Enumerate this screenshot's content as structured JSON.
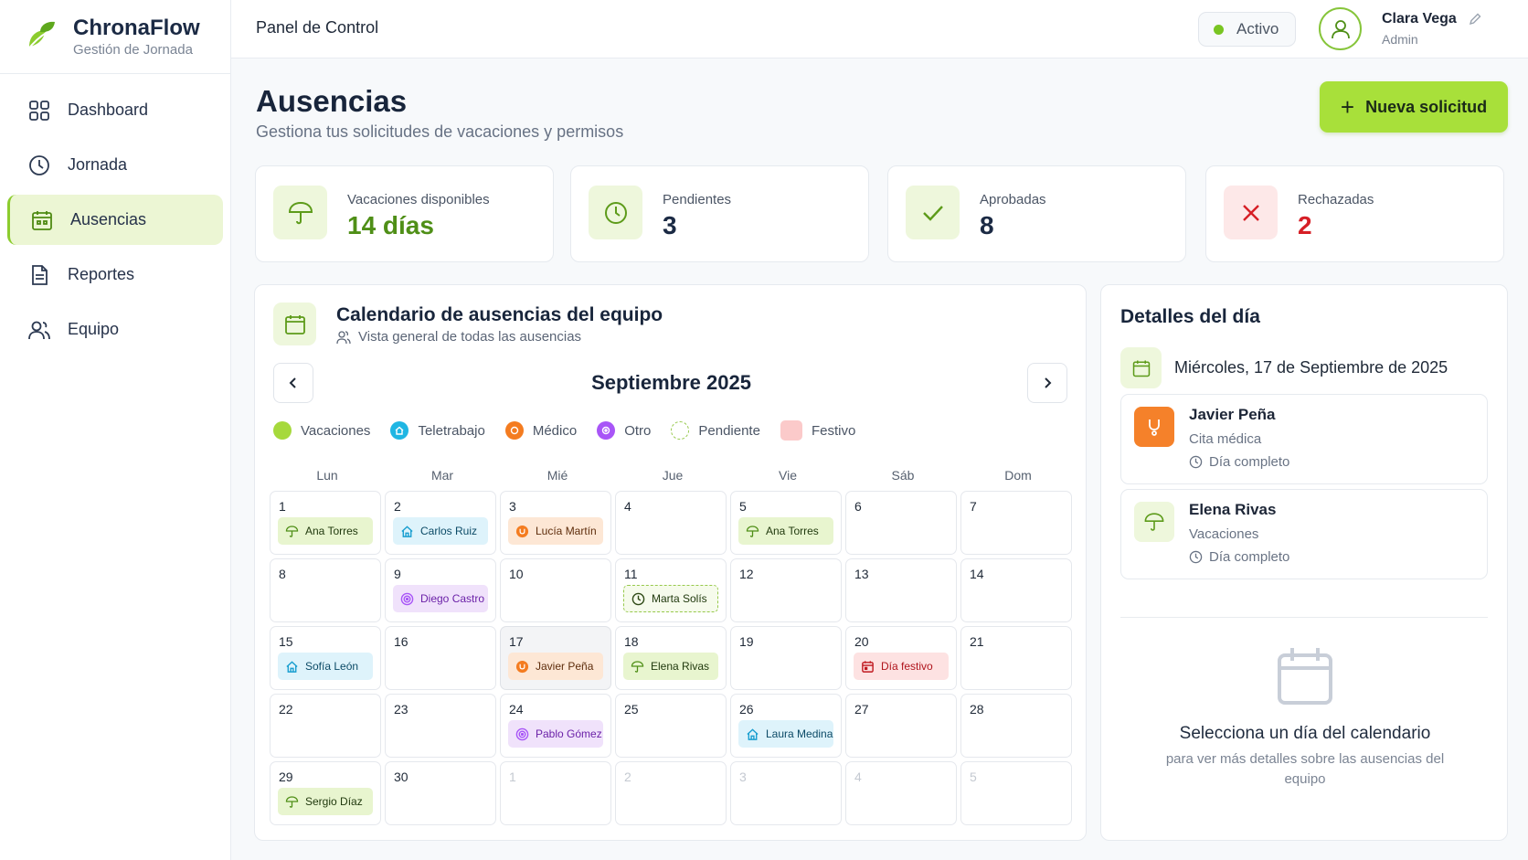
{
  "brand": {
    "title": "ChronaFlow",
    "subtitle": "Gestión de Jornada"
  },
  "sidebar": {
    "items": [
      {
        "label": "Dashboard",
        "icon": "grid-icon"
      },
      {
        "label": "Jornada",
        "icon": "clock-icon"
      },
      {
        "label": "Ausencias",
        "icon": "calendar-icon",
        "active": true
      },
      {
        "label": "Reportes",
        "icon": "document-icon"
      },
      {
        "label": "Equipo",
        "icon": "users-icon"
      }
    ]
  },
  "header": {
    "title": "Panel de Control",
    "status": "Activo",
    "user_name": "Clara Vega",
    "user_role": "Admin"
  },
  "page": {
    "title": "Ausencias",
    "subtitle": "Gestiona tus solicitudes de vacaciones y permisos",
    "new_button": "Nueva solicitud"
  },
  "stats": [
    {
      "label": "Vacaciones disponibles",
      "value": "14 días",
      "color": "#4f8f17"
    },
    {
      "label": "Pendientes",
      "value": "3",
      "color": "#1b2a44"
    },
    {
      "label": "Aprobadas",
      "value": "8",
      "color": "#1b2a44"
    },
    {
      "label": "Rechazadas",
      "value": "2",
      "color": "#d61f26"
    }
  ],
  "calendar": {
    "title": "Calendario de ausencias del equipo",
    "subtitle": "Vista general de todas las ausencias",
    "month": "Septiembre 2025",
    "legend": [
      "Vacaciones",
      "Teletrabajo",
      "Médico",
      "Otro",
      "Pendiente",
      "Festivo"
    ],
    "weekdays": [
      "Lun",
      "Mar",
      "Mié",
      "Jue",
      "Vie",
      "Sáb",
      "Dom"
    ],
    "days": [
      {
        "day": "1",
        "event": "Ana Torres",
        "type": "vac"
      },
      {
        "day": "2",
        "event": "Carlos Ruiz",
        "type": "tele"
      },
      {
        "day": "3",
        "event": "Lucía Martín",
        "type": "med"
      },
      {
        "day": "4"
      },
      {
        "day": "5",
        "event": "Ana Torres",
        "type": "vac"
      },
      {
        "day": "6"
      },
      {
        "day": "7"
      },
      {
        "day": "8"
      },
      {
        "day": "9",
        "event": "Diego Castro",
        "type": "otro"
      },
      {
        "day": "10"
      },
      {
        "day": "11",
        "event": "Marta Solís",
        "type": "pend"
      },
      {
        "day": "12"
      },
      {
        "day": "13"
      },
      {
        "day": "14"
      },
      {
        "day": "15",
        "event": "Sofía León",
        "type": "tele"
      },
      {
        "day": "16"
      },
      {
        "day": "17",
        "event": "Javier Peña",
        "type": "med",
        "selected": true
      },
      {
        "day": "18",
        "event": "Elena Rivas",
        "type": "vac"
      },
      {
        "day": "19"
      },
      {
        "day": "20",
        "event": "Día festivo",
        "type": "fest"
      },
      {
        "day": "21"
      },
      {
        "day": "22"
      },
      {
        "day": "23"
      },
      {
        "day": "24",
        "event": "Pablo Gómez",
        "type": "otro"
      },
      {
        "day": "25"
      },
      {
        "day": "26",
        "event": "Laura Medina",
        "type": "tele"
      },
      {
        "day": "27"
      },
      {
        "day": "28"
      },
      {
        "day": "29",
        "event": "Sergio Díaz",
        "type": "vac"
      },
      {
        "day": "30"
      },
      {
        "day": "1",
        "muted": true
      },
      {
        "day": "2",
        "muted": true
      },
      {
        "day": "3",
        "muted": true
      },
      {
        "day": "4",
        "muted": true
      },
      {
        "day": "5",
        "muted": true
      }
    ]
  },
  "details": {
    "title": "Detalles del día",
    "date": "Miércoles, 17 de Septiembre de 2025",
    "items": [
      {
        "name": "Javier Peña",
        "type": "Cita médica",
        "duration": "Día completo"
      },
      {
        "name": "Elena Rivas",
        "type": "Vacaciones",
        "duration": "Día completo"
      }
    ],
    "empty_title": "Selecciona un día del calendario",
    "empty_sub": "para ver más detalles sobre las ausencias del equipo"
  },
  "colors": {
    "accent": "#a8e03a",
    "vacaciones": "#a6d93c",
    "teletrabajo": "#1fb6e3",
    "medico": "#f47c20",
    "otro": "#a855f7",
    "festivo": "#fbcaca"
  }
}
